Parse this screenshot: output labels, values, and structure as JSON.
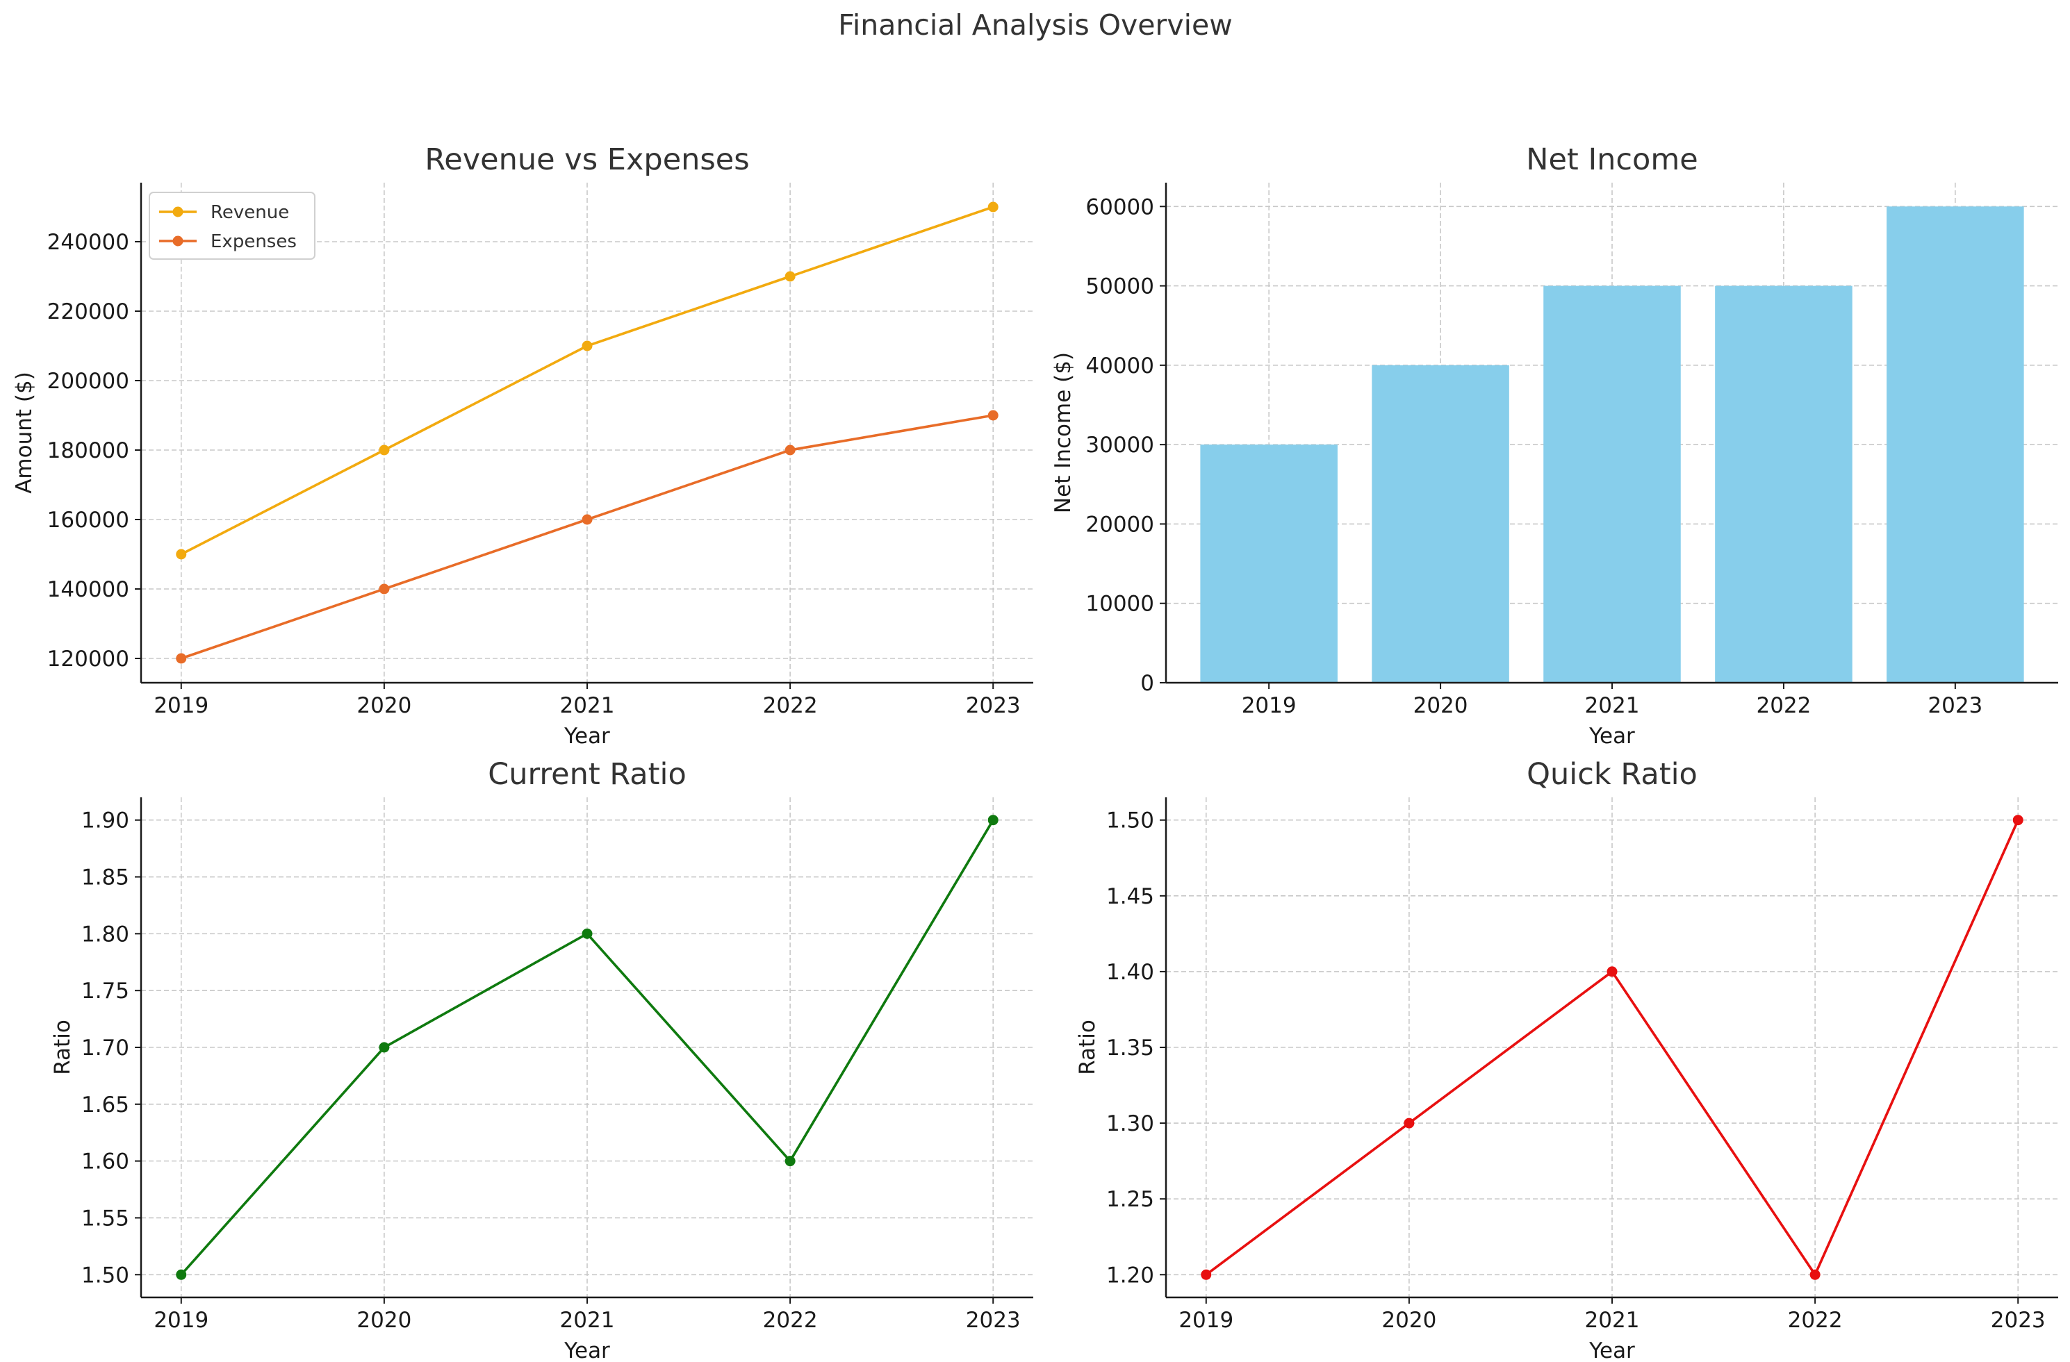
{
  "figure_title": "Financial Analysis Overview",
  "colors": {
    "revenue": "#f2aa0f",
    "expenses": "#e86c28",
    "net_income": "#87ceeb",
    "current_ratio": "#0f7a0f",
    "quick_ratio": "#e81010"
  },
  "chart_data": [
    {
      "type": "line",
      "title": "Revenue vs Expenses",
      "xlabel": "Year",
      "ylabel": "Amount ($)",
      "categories": [
        "2019",
        "2020",
        "2021",
        "2022",
        "2023"
      ],
      "series": [
        {
          "name": "Revenue",
          "values": [
            150000,
            180000,
            210000,
            230000,
            250000
          ],
          "color": "#f2aa0f"
        },
        {
          "name": "Expenses",
          "values": [
            120000,
            140000,
            160000,
            180000,
            190000
          ],
          "color": "#e86c28"
        }
      ],
      "ylim": [
        113000,
        257000
      ],
      "yticks": [
        120000,
        140000,
        160000,
        180000,
        200000,
        220000,
        240000
      ],
      "ytick_labels": [
        "120000",
        "140000",
        "160000",
        "180000",
        "200000",
        "220000",
        "240000"
      ],
      "legend": "top-left",
      "grid": true
    },
    {
      "type": "bar",
      "title": "Net Income",
      "xlabel": "Year",
      "ylabel": "Net Income ($)",
      "categories": [
        "2019",
        "2020",
        "2021",
        "2022",
        "2023"
      ],
      "values": [
        30000,
        40000,
        50000,
        50000,
        60000
      ],
      "color": "#87ceeb",
      "ylim": [
        0,
        63000
      ],
      "yticks": [
        0,
        10000,
        20000,
        30000,
        40000,
        50000,
        60000
      ],
      "ytick_labels": [
        "0",
        "10000",
        "20000",
        "30000",
        "40000",
        "50000",
        "60000"
      ],
      "grid": true
    },
    {
      "type": "line",
      "title": "Current Ratio",
      "xlabel": "Year",
      "ylabel": "Ratio",
      "categories": [
        "2019",
        "2020",
        "2021",
        "2022",
        "2023"
      ],
      "series": [
        {
          "values": [
            1.5,
            1.7,
            1.8,
            1.6,
            1.9
          ],
          "color": "#0f7a0f"
        }
      ],
      "ylim": [
        1.48,
        1.92
      ],
      "yticks": [
        1.5,
        1.55,
        1.6,
        1.65,
        1.7,
        1.75,
        1.8,
        1.85,
        1.9
      ],
      "ytick_labels": [
        "1.50",
        "1.55",
        "1.60",
        "1.65",
        "1.70",
        "1.75",
        "1.80",
        "1.85",
        "1.90"
      ],
      "grid": true
    },
    {
      "type": "line",
      "title": "Quick Ratio",
      "xlabel": "Year",
      "ylabel": "Ratio",
      "categories": [
        "2019",
        "2020",
        "2021",
        "2022",
        "2023"
      ],
      "series": [
        {
          "values": [
            1.2,
            1.3,
            1.4,
            1.2,
            1.5
          ],
          "color": "#e81010"
        }
      ],
      "ylim": [
        1.185,
        1.515
      ],
      "yticks": [
        1.2,
        1.25,
        1.3,
        1.35,
        1.4,
        1.45,
        1.5
      ],
      "ytick_labels": [
        "1.20",
        "1.25",
        "1.30",
        "1.35",
        "1.40",
        "1.45",
        "1.50"
      ],
      "grid": true
    }
  ]
}
